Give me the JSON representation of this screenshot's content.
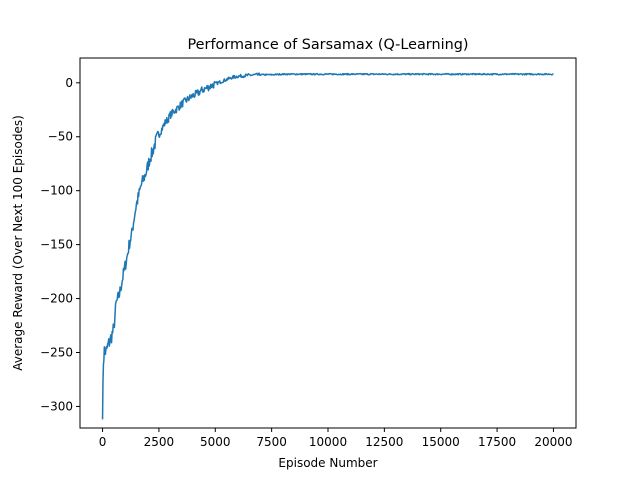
{
  "chart_data": {
    "type": "line",
    "title": "Performance of Sarsamax (Q-Learning)",
    "xlabel": "Episode Number",
    "ylabel": "Average Reward (Over Next 100 Episodes)",
    "xlim": [
      -1000,
      21000
    ],
    "ylim": [
      -320,
      23
    ],
    "xticks": [
      0,
      2500,
      5000,
      7500,
      10000,
      12500,
      15000,
      17500,
      20000
    ],
    "yticks": [
      -300,
      -250,
      -200,
      -150,
      -100,
      -50,
      0
    ],
    "grid": false,
    "legend": "none",
    "series": [
      {
        "color": "#1f77b4",
        "x": [
          0,
          40,
          80,
          150,
          250,
          350,
          500,
          600,
          750,
          900,
          1000,
          1100,
          1200,
          1300,
          1400,
          1500,
          1600,
          1700,
          1800,
          1900,
          2000,
          2100,
          2200,
          2300,
          2400,
          2500,
          2600,
          2700,
          2800,
          2900,
          3000,
          3200,
          3400,
          3600,
          3800,
          4000,
          4200,
          4400,
          4600,
          4800,
          5000,
          5250,
          5500,
          5750,
          6000,
          6500,
          7000,
          7500,
          8000,
          9000,
          10000,
          11000,
          12000,
          13000,
          14000,
          15000,
          16000,
          17000,
          18000,
          19000,
          20000
        ],
        "y": [
          -305,
          -258,
          -248,
          -250,
          -243,
          -238,
          -228,
          -205,
          -196,
          -180,
          -170,
          -160,
          -148,
          -140,
          -125,
          -113,
          -105,
          -96,
          -90,
          -85,
          -78,
          -70,
          -65,
          -58,
          -52,
          -48,
          -44,
          -40,
          -36,
          -34,
          -30,
          -26,
          -22,
          -18,
          -15,
          -12,
          -10,
          -7,
          -5,
          -3,
          -1,
          1,
          3,
          5,
          6,
          7,
          7.5,
          7.5,
          8,
          8,
          8,
          8,
          8,
          8,
          8,
          8,
          8,
          8,
          8,
          8,
          8
        ]
      }
    ]
  }
}
